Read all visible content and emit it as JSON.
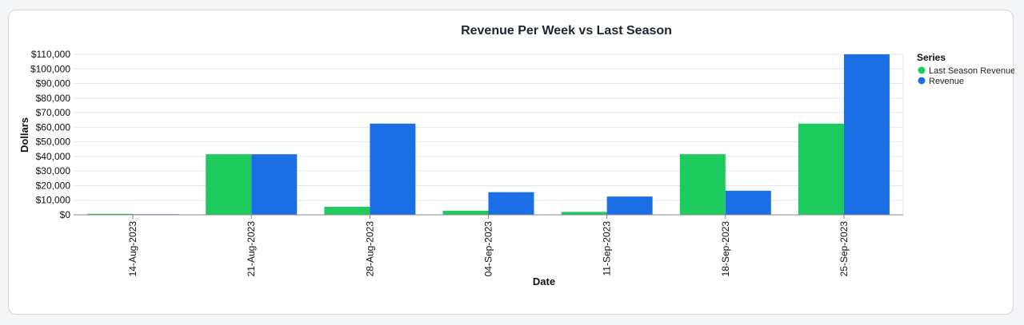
{
  "chart_data": {
    "type": "bar",
    "title": "Revenue Per Week vs Last Season",
    "xlabel": "Date",
    "ylabel": "Dollars",
    "ylim": [
      0,
      110000
    ],
    "yticks": [
      0,
      10000,
      20000,
      30000,
      40000,
      50000,
      60000,
      70000,
      80000,
      90000,
      100000,
      110000
    ],
    "ytick_labels": [
      "$0",
      "$10,000",
      "$20,000",
      "$30,000",
      "$40,000",
      "$50,000",
      "$60,000",
      "$70,000",
      "$80,000",
      "$90,000",
      "$100,000",
      "$110,000"
    ],
    "categories": [
      "14-Aug-2023",
      "21-Aug-2023",
      "28-Aug-2023",
      "04-Sep-2023",
      "11-Sep-2023",
      "18-Sep-2023",
      "25-Sep-2023"
    ],
    "series": [
      {
        "name": "Last Season Revenue",
        "color": "#1ecb5f",
        "values": [
          700,
          41500,
          5500,
          2800,
          2000,
          41500,
          62500
        ]
      },
      {
        "name": "Revenue",
        "color": "#1b6ee3",
        "values": [
          400,
          41500,
          62500,
          15500,
          12500,
          16500,
          110000
        ]
      }
    ],
    "legend": {
      "title": "Series",
      "position": "top-right"
    },
    "grid": true
  }
}
